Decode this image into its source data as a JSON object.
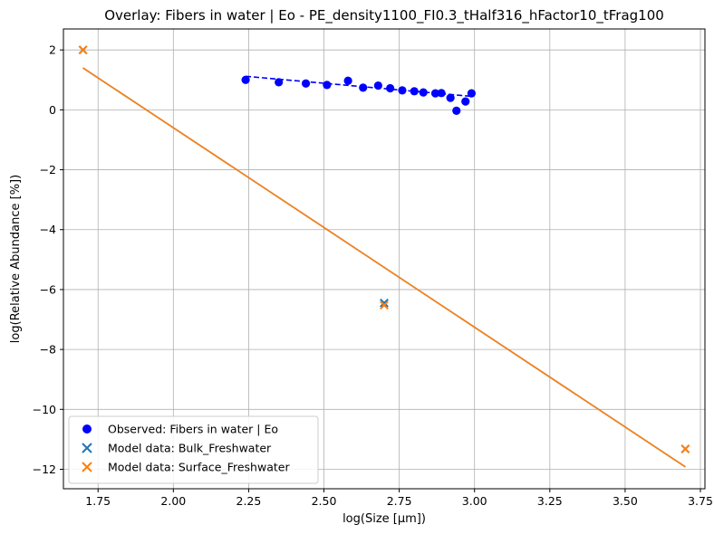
{
  "chart_data": {
    "type": "scatter",
    "title": "Overlay: Fibers in water | Eo - PE_density1100_FI0.3_tHalf316_hFactor10_tFrag100",
    "xlabel": "log(Size [μm])",
    "ylabel": "log(Relative Abundance [%])",
    "xlim": [
      1.635,
      3.765
    ],
    "ylim": [
      -12.65,
      2.7
    ],
    "xticks": [
      1.75,
      2.0,
      2.25,
      2.5,
      2.75,
      3.0,
      3.25,
      3.5,
      3.75
    ],
    "xtick_labels": [
      "1.75",
      "2.00",
      "2.25",
      "2.50",
      "2.75",
      "3.00",
      "3.25",
      "3.50",
      "3.75"
    ],
    "yticks": [
      -12,
      -10,
      -8,
      -6,
      -4,
      -2,
      0,
      2
    ],
    "ytick_labels": [
      "−12",
      "−10",
      "−8",
      "−6",
      "−4",
      "−2",
      "0",
      "2"
    ],
    "grid": true,
    "legend_position": "lower-left",
    "series": [
      {
        "name": "Observed: Fibers in water | Eo",
        "kind": "scatter",
        "marker": "circle",
        "color": "#0000ff",
        "x": [
          2.24,
          2.35,
          2.44,
          2.51,
          2.58,
          2.63,
          2.68,
          2.72,
          2.76,
          2.8,
          2.83,
          2.87,
          2.89,
          2.92,
          2.94,
          2.97,
          2.99
        ],
        "y": [
          1.0,
          0.92,
          0.88,
          0.83,
          0.97,
          0.74,
          0.81,
          0.72,
          0.65,
          0.62,
          0.58,
          0.55,
          0.56,
          0.4,
          -0.03,
          0.28,
          0.55
        ]
      },
      {
        "name": "Model data: Bulk_Freshwater",
        "kind": "scatter",
        "marker": "x",
        "color": "#1f77b4",
        "x": [
          1.7,
          2.7,
          3.7
        ],
        "y": [
          2.0,
          -6.45,
          -11.32
        ]
      },
      {
        "name": "Model data: Surface_Freshwater",
        "kind": "scatter",
        "marker": "x",
        "color": "#ff7f0e",
        "x": [
          1.7,
          2.7,
          3.7
        ],
        "y": [
          2.0,
          -6.52,
          -11.32
        ]
      }
    ],
    "fits": [
      {
        "for": "Observed: Fibers in water | Eo",
        "style": "dashed",
        "color": "#0000ff",
        "x": [
          2.24,
          2.99
        ],
        "y": [
          1.12,
          0.45
        ]
      },
      {
        "for": "Model data: Bulk_Freshwater",
        "style": "solid",
        "color": "#1f77b4",
        "x": [
          1.7,
          3.7
        ],
        "y": [
          1.4,
          -11.92
        ]
      },
      {
        "for": "Model data: Surface_Freshwater",
        "style": "solid",
        "color": "#ff7f0e",
        "x": [
          1.7,
          3.7
        ],
        "y": [
          1.4,
          -11.92
        ]
      }
    ]
  }
}
